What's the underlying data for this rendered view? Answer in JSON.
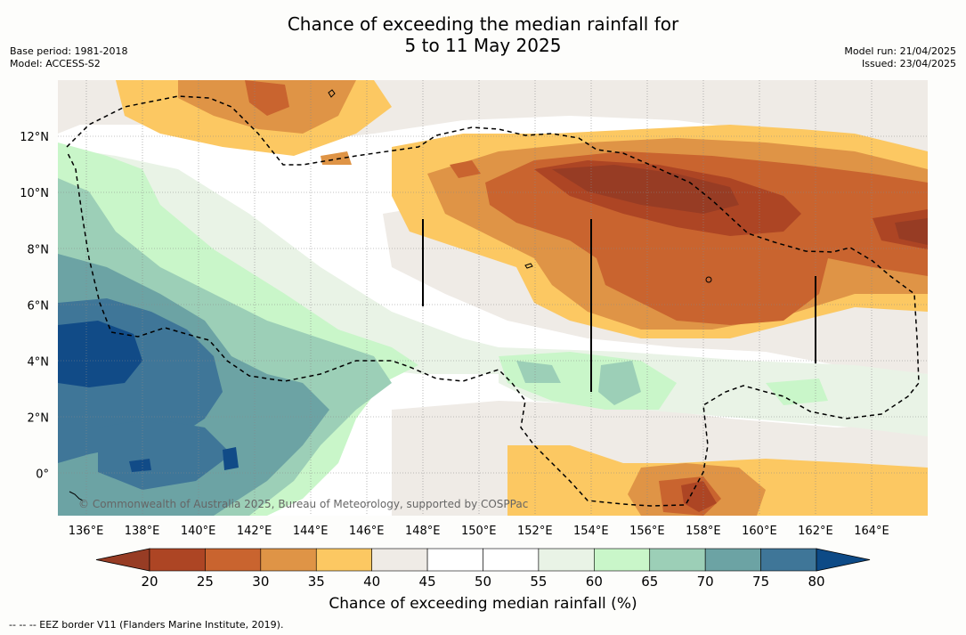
{
  "title_line1": "Chance of exceeding the median rainfall for",
  "title_line2": "5 to 11 May 2025",
  "meta_left": {
    "base_period": "Base period: 1981-2018",
    "model": "Model: ACCESS-S2"
  },
  "meta_right": {
    "model_run": "Model run: 21/04/2025",
    "issued": "Issued: 23/04/2025"
  },
  "map": {
    "lon_labels": [
      "136°E",
      "138°E",
      "140°E",
      "142°E",
      "144°E",
      "146°E",
      "148°E",
      "150°E",
      "152°E",
      "154°E",
      "156°E",
      "158°E",
      "160°E",
      "162°E",
      "164°E"
    ],
    "lat_labels": [
      "12°N",
      "10°N",
      "8°N",
      "6°N",
      "4°N",
      "2°N",
      "0°"
    ],
    "lon_range": [
      135,
      166
    ],
    "lat_range": [
      -1.5,
      14
    ],
    "copyright": "© Commonwealth of Australia 2025, Bureau of Meteorology, supported by COSPPac"
  },
  "colorbar": {
    "title": "Chance of exceeding median rainfall (%)",
    "ticks": [
      "20",
      "25",
      "30",
      "35",
      "40",
      "45",
      "50",
      "55",
      "60",
      "65",
      "70",
      "75",
      "80"
    ],
    "colors": [
      "#ad4524",
      "#c9642f",
      "#df9446",
      "#fcc862",
      "#efebe6",
      "#ffffff",
      "#ffffff",
      "#e9f3e6",
      "#c9f6c9",
      "#9ccfb7",
      "#6ca3a4",
      "#3f7698",
      "#114b87"
    ],
    "under_color": "#973c24",
    "over_color": "#0d4a86"
  },
  "footnote": "--  --  -- EEZ border V11 (Flanders Marine Institute, 2019)."
}
